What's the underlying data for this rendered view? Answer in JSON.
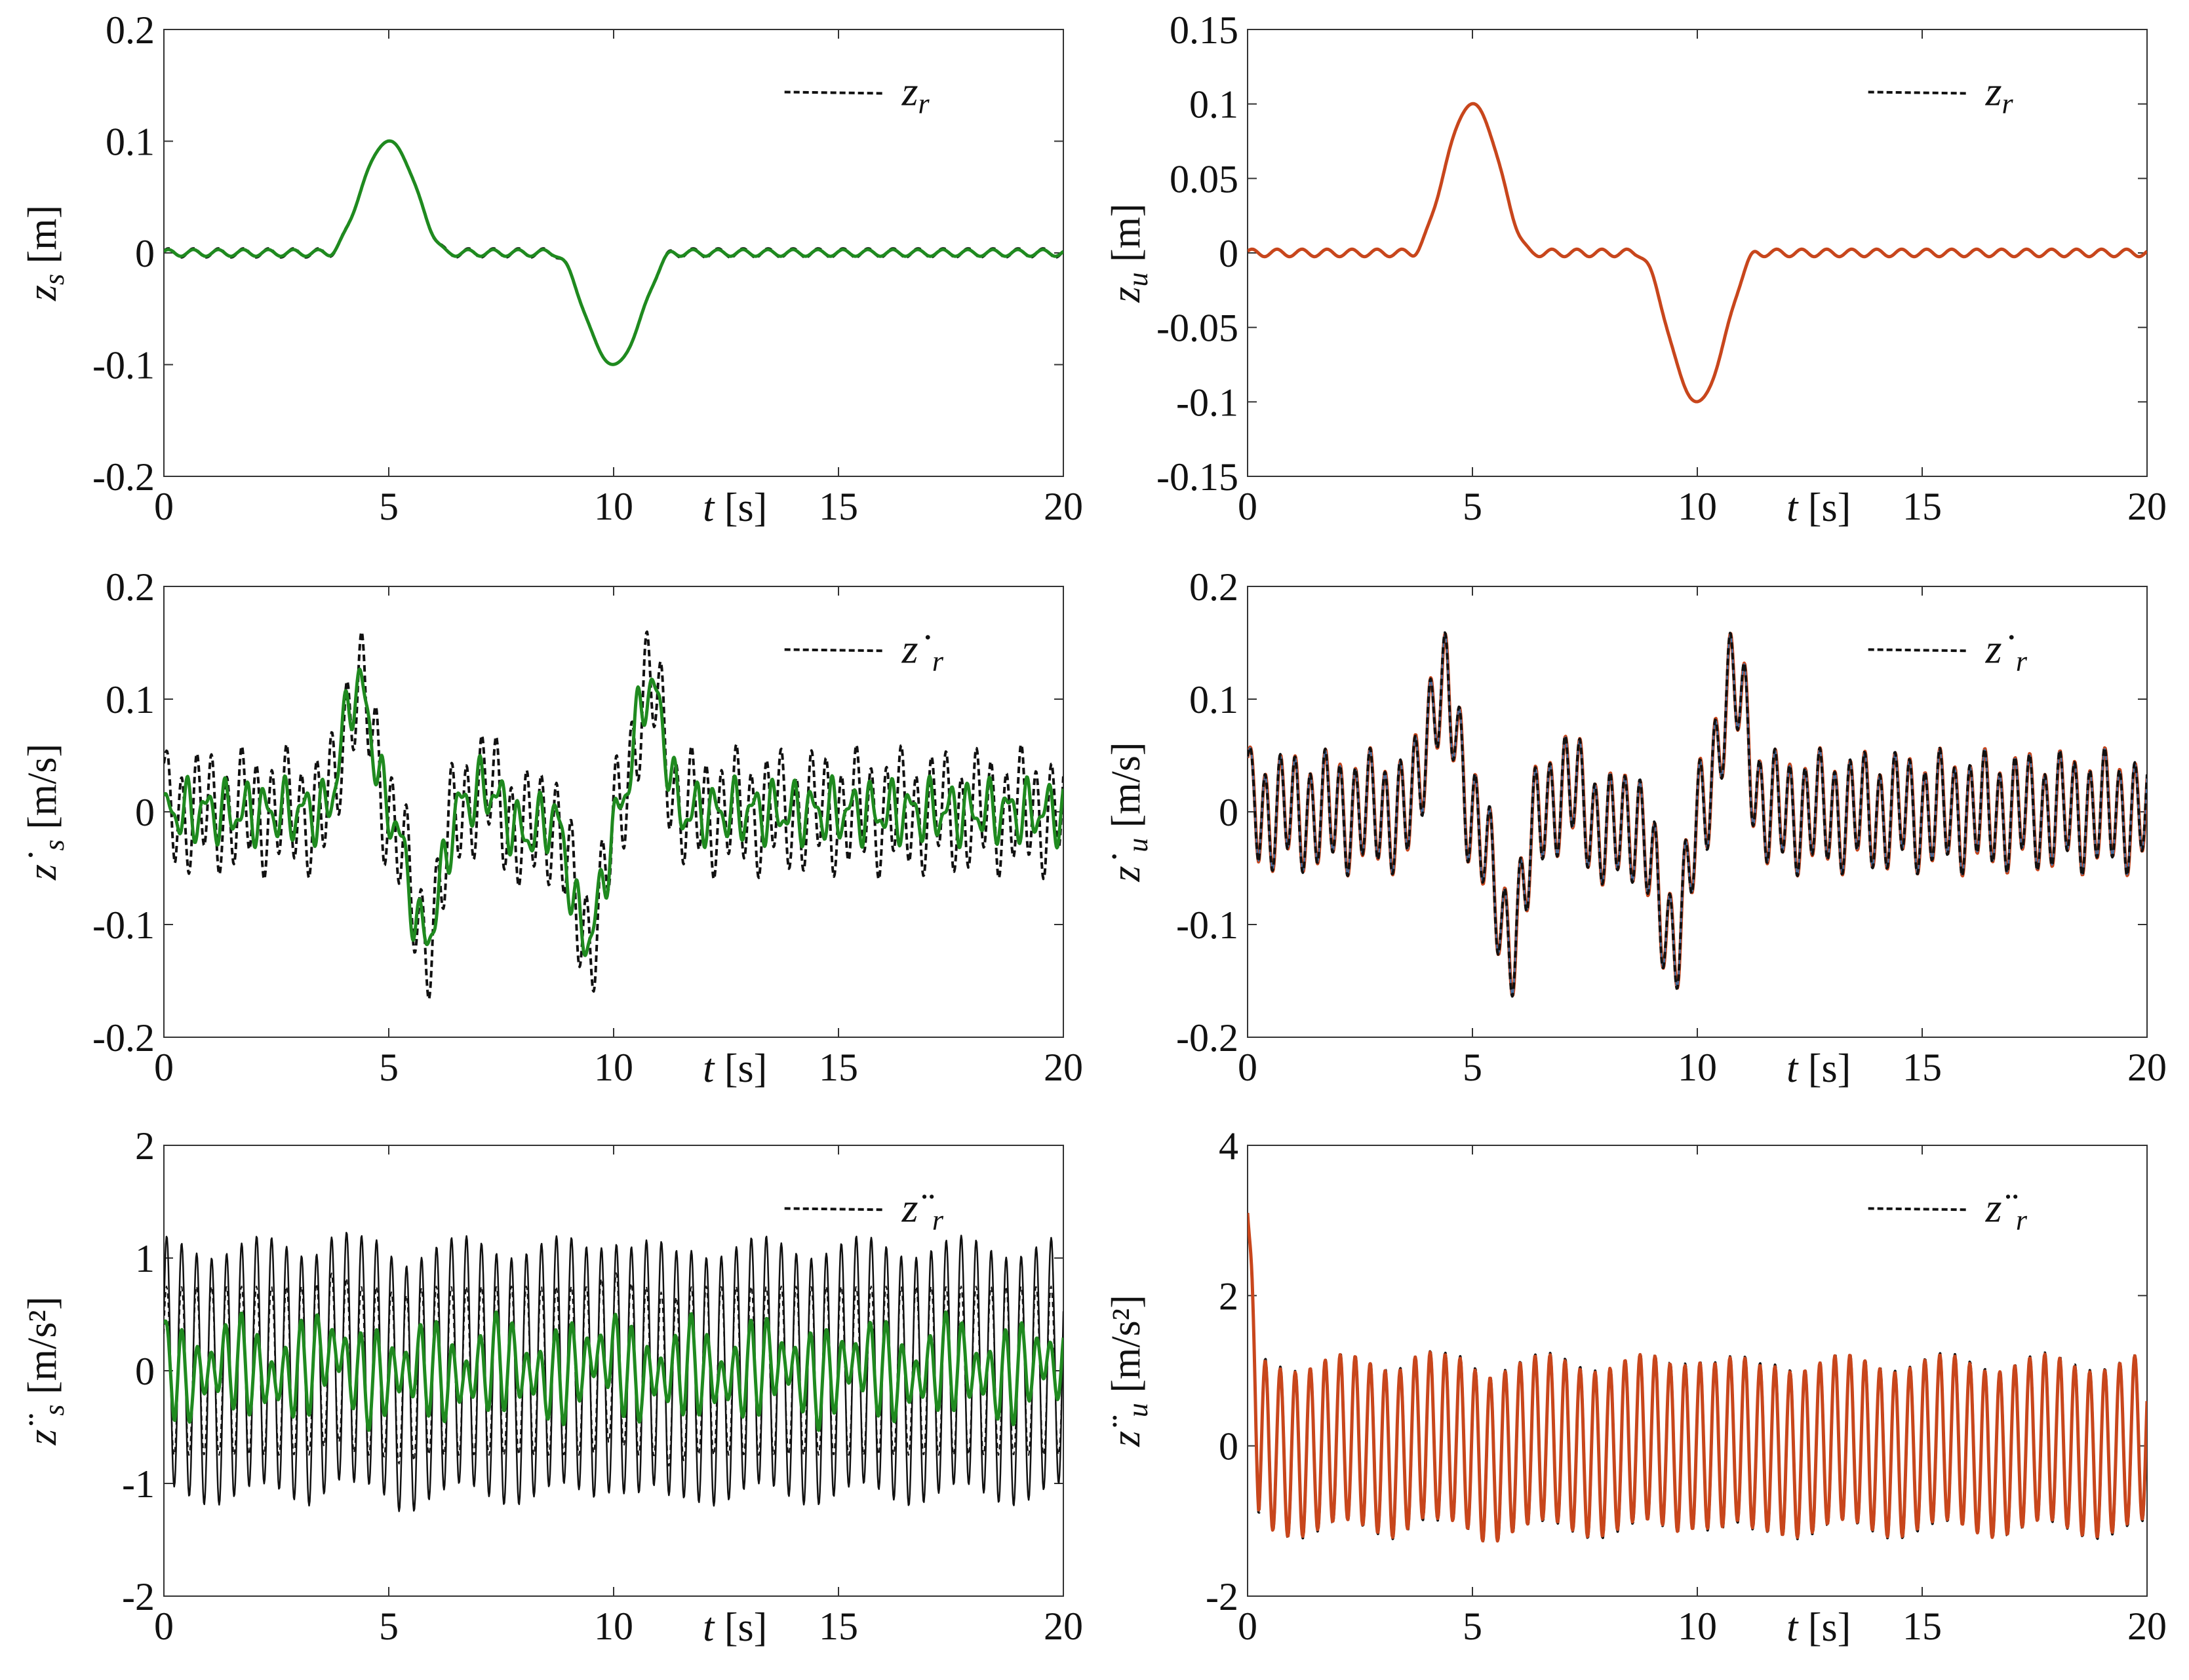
{
  "figure": {
    "layout": "3 rows x 2 columns of time-series subplots"
  },
  "colors": {
    "reference": "#111111",
    "sprung_mass": "#1f8a1f",
    "unsprung_mass": "#c8461c",
    "unsprung_overlay": "#3b6ea5",
    "axis": "#333333"
  },
  "chart_data": [
    {
      "id": "zs",
      "type": "line",
      "ylabel_symbol": "z",
      "ylabel_sub": "s",
      "ylabel_dot": "",
      "ylabel_unit": "[m]",
      "xlabel_symbol": "t",
      "xlabel_unit": "[s]",
      "xlim": [
        0,
        20
      ],
      "ylim": [
        -0.2,
        0.2
      ],
      "xticks": [
        "0",
        "5",
        "10",
        "15",
        "20"
      ],
      "yticks": [
        "-0.2",
        "-0.1",
        "0",
        "0.1",
        "0.2"
      ],
      "legend": {
        "symbol": "z",
        "sub": "r",
        "dot": "",
        "position": "top-right"
      },
      "series": [
        {
          "name": "z_r (reference)",
          "style": "dashed",
          "color": "reference",
          "signal": {
            "base": "displacement",
            "ripple": [
              {
                "amp": 0.004,
                "freq": 1.8
              }
            ],
            "startval": 0,
            "endval": 0
          }
        },
        {
          "name": "z_s",
          "style": "solid",
          "color": "sprung_mass",
          "signal": {
            "base": "displacement",
            "ripple": [
              {
                "amp": 0.003,
                "freq": 1.8
              }
            ],
            "startval": 0,
            "endval": 0
          }
        }
      ]
    },
    {
      "id": "zu",
      "type": "line",
      "ylabel_symbol": "z",
      "ylabel_sub": "u",
      "ylabel_dot": "",
      "ylabel_unit": "[m]",
      "xlabel_symbol": "t",
      "xlabel_unit": "[s]",
      "xlim": [
        0,
        20
      ],
      "ylim": [
        -0.15,
        0.15
      ],
      "xticks": [
        "0",
        "5",
        "10",
        "15",
        "20"
      ],
      "yticks": [
        "-0.15",
        "-0.1",
        "-0.05",
        "0",
        "0.05",
        "0.1",
        "0.15"
      ],
      "legend": {
        "symbol": "z",
        "sub": "r",
        "dot": "",
        "position": "top-right"
      },
      "series": [
        {
          "name": "z_r (reference)",
          "style": "solid-thin",
          "color": "reference",
          "signal": {
            "base": "displacement",
            "ripple": [
              {
                "amp": 0.003,
                "freq": 1.8
              }
            ],
            "startval": 0,
            "endval": 0
          }
        },
        {
          "name": "z_u",
          "style": "solid",
          "color": "unsprung_mass",
          "signal": {
            "base": "displacement",
            "ripple": [
              {
                "amp": 0.0025,
                "freq": 1.8
              }
            ],
            "startval": 0,
            "endval": 0
          }
        }
      ]
    },
    {
      "id": "zs_dot",
      "type": "line",
      "ylabel_symbol": "z",
      "ylabel_sub": "s",
      "ylabel_dot": "˙",
      "ylabel_unit": "[m/s]",
      "xlabel_symbol": "t",
      "xlabel_unit": "[s]",
      "xlim": [
        0,
        20
      ],
      "ylim": [
        -0.2,
        0.2
      ],
      "xticks": [
        "0",
        "5",
        "10",
        "15",
        "20"
      ],
      "yticks": [
        "-0.2",
        "-0.1",
        "0",
        "0.1",
        "0.2"
      ],
      "legend": {
        "symbol": "z",
        "sub": "r",
        "dot": "˙",
        "position": "top-right"
      },
      "series": [
        {
          "name": "ż_r (reference)",
          "style": "dashed",
          "color": "reference",
          "signal": {
            "base": "velocity",
            "ripple": [
              {
                "amp": 0.045,
                "freq": 3.0
              },
              {
                "amp": 0.015,
                "freq": 1.1
              }
            ],
            "startval": 0.05,
            "endval": 0.05
          }
        },
        {
          "name": "ż_s",
          "style": "solid",
          "color": "sprung_mass",
          "signal": {
            "base": "velocity",
            "ripple": [
              {
                "amp": 0.02,
                "freq": 2.3
              },
              {
                "amp": 0.012,
                "freq": 3.7
              }
            ],
            "startval": 0.01,
            "endval": 0.01
          }
        }
      ]
    },
    {
      "id": "zu_dot",
      "type": "line",
      "ylabel_symbol": "z",
      "ylabel_sub": "u",
      "ylabel_dot": "˙",
      "ylabel_unit": "[m/s]",
      "xlabel_symbol": "t",
      "xlabel_unit": "[s]",
      "xlim": [
        0,
        20
      ],
      "ylim": [
        -0.2,
        0.2
      ],
      "xticks": [
        "0",
        "5",
        "10",
        "15",
        "20"
      ],
      "yticks": [
        "-0.2",
        "-0.1",
        "0",
        "0.1",
        "0.2"
      ],
      "legend": {
        "symbol": "z",
        "sub": "r",
        "dot": "˙",
        "position": "top-right"
      },
      "series": [
        {
          "name": "ż_u",
          "style": "solid",
          "color": "unsprung_mass",
          "signal": {
            "base": "velocity",
            "ripple": [
              {
                "amp": 0.045,
                "freq": 3.0
              },
              {
                "amp": 0.012,
                "freq": 1.1
              }
            ],
            "startval": 0.06,
            "endval": 0.06
          }
        },
        {
          "name": "ż_u overlay",
          "style": "solid-thin",
          "color": "unsprung_overlay",
          "signal": {
            "base": "velocity",
            "ripple": [
              {
                "amp": 0.044,
                "freq": 3.0
              },
              {
                "amp": 0.012,
                "freq": 1.1
              }
            ],
            "startval": 0.06,
            "endval": 0.06
          }
        },
        {
          "name": "ż_r (reference)",
          "style": "dashed",
          "color": "reference",
          "signal": {
            "base": "velocity",
            "ripple": [
              {
                "amp": 0.045,
                "freq": 3.0
              },
              {
                "amp": 0.012,
                "freq": 1.1
              }
            ],
            "startval": 0.06,
            "endval": 0.06
          }
        }
      ]
    },
    {
      "id": "zs_ddot",
      "type": "line",
      "ylabel_symbol": "z",
      "ylabel_sub": "s",
      "ylabel_dot": "¨",
      "ylabel_unit": "[m/s²]",
      "xlabel_symbol": "t",
      "xlabel_unit": "[s]",
      "xlim": [
        0,
        20
      ],
      "ylim": [
        -2,
        2
      ],
      "xticks": [
        "0",
        "5",
        "10",
        "15",
        "20"
      ],
      "yticks": [
        "-2",
        "-1",
        "0",
        "1",
        "2"
      ],
      "legend": {
        "symbol": "z",
        "sub": "r",
        "dot": "¨",
        "position": "top-right"
      },
      "series": [
        {
          "name": "z̈_r (reference)",
          "style": "solid-thin",
          "color": "reference",
          "signal": {
            "base": "acceleration",
            "ripple": [
              {
                "amp": 1.1,
                "freq": 3.0
              },
              {
                "amp": 0.1,
                "freq": 0.45
              }
            ],
            "startval": 0,
            "endval": 0
          }
        },
        {
          "name": "z̈_r (dashed)",
          "style": "dashed-thin",
          "color": "reference",
          "signal": {
            "base": "acceleration",
            "ripple": [
              {
                "amp": 0.75,
                "freq": 3.0
              }
            ],
            "startval": 0,
            "endval": 0
          }
        },
        {
          "name": "z̈_s",
          "style": "solid",
          "color": "sprung_mass",
          "signal": {
            "base": "acceleration",
            "ripple": [
              {
                "amp": 0.3,
                "freq": 3.0
              },
              {
                "amp": 0.15,
                "freq": 2.3
              },
              {
                "amp": 0.08,
                "freq": 0.5
              }
            ],
            "startval": 0.5,
            "endval": 0.3
          }
        }
      ]
    },
    {
      "id": "zu_ddot",
      "type": "line",
      "ylabel_symbol": "z",
      "ylabel_sub": "u",
      "ylabel_dot": "¨",
      "ylabel_unit": "[m/s²]",
      "xlabel_symbol": "t",
      "xlabel_unit": "[s]",
      "xlim": [
        0,
        20
      ],
      "ylim": [
        -2,
        4
      ],
      "xticks": [
        "0",
        "5",
        "10",
        "15",
        "20"
      ],
      "yticks": [
        "-2",
        "0",
        "2",
        "4"
      ],
      "legend": {
        "symbol": "z",
        "sub": "r",
        "dot": "¨",
        "position": "top-right"
      },
      "series": [
        {
          "name": "z̈_r (reference)",
          "style": "dashed",
          "color": "reference",
          "signal": {
            "base": "acceleration",
            "ripple": [
              {
                "amp": 1.12,
                "freq": 3.0
              },
              {
                "amp": 0.12,
                "freq": 0.45
              }
            ],
            "startval": 3.1,
            "endval": 0
          }
        },
        {
          "name": "z̈_u",
          "style": "solid",
          "color": "unsprung_mass",
          "signal": {
            "base": "acceleration",
            "ripple": [
              {
                "amp": 1.1,
                "freq": 3.0
              },
              {
                "amp": 0.12,
                "freq": 0.45
              }
            ],
            "startval": 3.1,
            "endval": 0
          }
        }
      ]
    }
  ]
}
